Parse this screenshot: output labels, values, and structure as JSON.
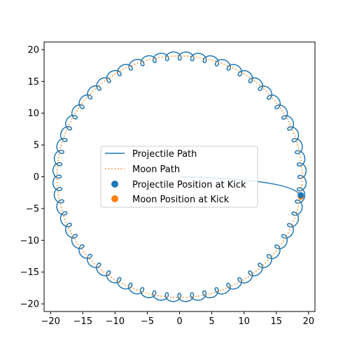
{
  "chart_data": {
    "type": "line",
    "title": "",
    "xlabel": "",
    "ylabel": "",
    "xlim": [
      -21.0,
      21.0
    ],
    "ylim": [
      -21.2,
      21.2
    ],
    "xticks": [
      -20,
      -15,
      -10,
      -5,
      0,
      5,
      10,
      15,
      20
    ],
    "yticks": [
      -20,
      -15,
      -10,
      -5,
      0,
      5,
      10,
      15,
      20
    ],
    "xtick_labels": [
      "−20",
      "−15",
      "−10",
      "−5",
      "0",
      "5",
      "10",
      "15",
      "20"
    ],
    "ytick_labels": [
      "−20",
      "−15",
      "−10",
      "−5",
      "0",
      "5",
      "10",
      "15",
      "20"
    ],
    "grid": false,
    "legend_position": "center",
    "series": [
      {
        "name": "Projectile Path",
        "kind": "line",
        "color": "#1f77b4",
        "description_params": {
          "orbit_radius": 19.0,
          "loop_radius": 0.65,
          "loops_per_orbit": 60,
          "initial_segment": {
            "from": [
              0,
              0
            ],
            "to": [
              18.8,
              -3.0
            ]
          }
        }
      },
      {
        "name": "Moon Path",
        "kind": "dotted-line",
        "color": "#ff7f0e",
        "radius": 19.0,
        "center": [
          0,
          0
        ]
      },
      {
        "name": "Projectile Position at Kick",
        "kind": "scatter",
        "color": "#1f77b4",
        "points": [
          [
            18.8,
            -2.9
          ]
        ]
      },
      {
        "name": "Moon Position at Kick",
        "kind": "scatter",
        "color": "#ff7f0e",
        "points": [
          [
            18.8,
            -3.1
          ]
        ]
      }
    ]
  }
}
